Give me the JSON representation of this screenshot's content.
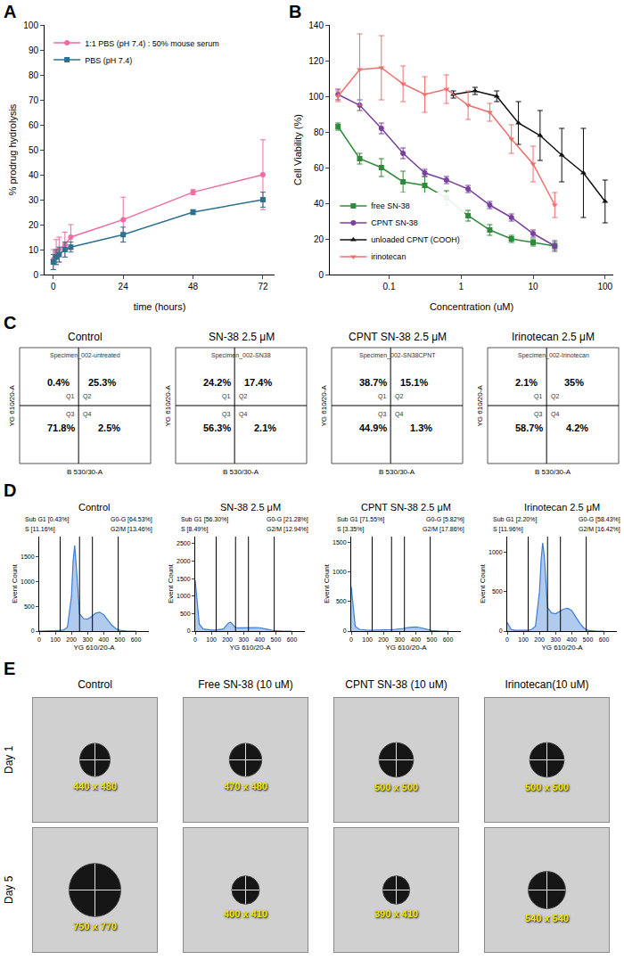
{
  "chart_data": [
    {
      "panel": "A",
      "type": "line",
      "xlabel": "time (hours)",
      "ylabel": "% prodrug hydrolysis",
      "x": [
        0,
        1,
        2,
        4,
        6,
        24,
        48,
        72
      ],
      "series": [
        {
          "name": "1:1 PBS (pH 7.4) : 50% mouse serum",
          "color": "#f06ba0",
          "marker": "circle",
          "values": [
            6,
            9,
            10,
            12,
            15,
            22,
            33,
            40
          ],
          "errors": [
            4,
            5,
            5,
            5,
            5,
            9,
            1,
            14
          ]
        },
        {
          "name": "PBS (pH 7.4)",
          "color": "#2f6f8f",
          "marker": "square",
          "values": [
            5,
            7,
            8,
            10,
            11,
            16,
            25,
            30
          ],
          "errors": [
            3,
            3,
            3,
            3,
            2,
            3,
            1,
            3
          ]
        }
      ],
      "xlim": [
        -3,
        76
      ],
      "xticks": [
        0,
        24,
        48,
        72
      ],
      "ylim": [
        0,
        100
      ],
      "yticks": [
        0,
        10,
        20,
        30,
        40,
        50,
        60,
        70,
        80,
        90,
        100
      ],
      "grid": false,
      "legend": "top-left"
    },
    {
      "panel": "B",
      "type": "line",
      "log": "x",
      "xlabel": "Concentration (uM)",
      "ylabel": "Cell Viability (%)",
      "series": [
        {
          "name": "free SN-38",
          "color": "#2e8b3a",
          "marker": "square",
          "x": [
            0.0195,
            0.039,
            0.078,
            0.156,
            0.3125,
            0.625,
            1.25,
            2.5,
            5,
            10,
            20
          ],
          "values": [
            83,
            65,
            60,
            52,
            50,
            43,
            33,
            25,
            20,
            18,
            16
          ],
          "errors": [
            2,
            3,
            5,
            6,
            5,
            4,
            3,
            3,
            2,
            2,
            2
          ]
        },
        {
          "name": "CPNT SN-38",
          "color": "#7b3fa0",
          "marker": "circle",
          "x": [
            0.0195,
            0.039,
            0.078,
            0.156,
            0.3125,
            0.625,
            1.25,
            2.5,
            5,
            10,
            20
          ],
          "values": [
            101,
            95,
            82,
            68,
            57,
            53,
            48,
            39,
            32,
            23,
            16
          ],
          "errors": [
            3,
            3,
            3,
            3,
            2,
            2,
            2,
            2,
            2,
            2,
            3
          ]
        },
        {
          "name": "unloaded CPNT (COOH)",
          "color": "#111111",
          "marker": "triangle-up",
          "x": [
            0.78125,
            1.5625,
            3.125,
            6.25,
            12.5,
            25,
            50,
            100
          ],
          "values": [
            101,
            103,
            100,
            85,
            78,
            67,
            57,
            41
          ],
          "errors": [
            2,
            2,
            3,
            12,
            14,
            15,
            25,
            12
          ]
        },
        {
          "name": "irinotecan",
          "color": "#f07070",
          "marker": "triangle-down",
          "x": [
            0.0195,
            0.039,
            0.078,
            0.156,
            0.3125,
            0.625,
            1.25,
            2.5,
            5,
            10,
            20
          ],
          "values": [
            100,
            115,
            116,
            107,
            101,
            104,
            95,
            91,
            76,
            62,
            39
          ],
          "errors": [
            3,
            20,
            18,
            10,
            10,
            8,
            8,
            5,
            8,
            10,
            7
          ]
        }
      ],
      "xlim": [
        0.015,
        130
      ],
      "xticks": [
        0.1,
        1,
        10,
        100
      ],
      "ylim": [
        0,
        140
      ],
      "yticks": [
        0,
        20,
        40,
        60,
        80,
        100,
        120,
        140
      ],
      "grid": false,
      "legend": "bottom-left"
    },
    {
      "panel": "C",
      "type": "quadrant",
      "xlabel": "B 530/30-A",
      "ylabel": "YG 610/20-A",
      "quadrants": [
        "Q1",
        "Q2",
        "Q3",
        "Q4"
      ],
      "tick_labels": false,
      "data_labels": true,
      "plots": [
        {
          "title": "Control",
          "specimen": "Specimen_002-untreated",
          "values": [
            0.4,
            25.3,
            71.8,
            2.5
          ],
          "value_labels": [
            "0.4%",
            "25.3%",
            "71.8%",
            "2.5%"
          ]
        },
        {
          "title": "SN-38 2.5 μM",
          "specimen": "Specimen_002-SN38",
          "values": [
            24.2,
            17.4,
            56.3,
            2.1
          ],
          "value_labels": [
            "24.2%",
            "17.4%",
            "56.3%",
            "2.1%"
          ]
        },
        {
          "title": "CPNT SN-38 2.5 μM",
          "specimen": "Specimen_002-SN38CPNT",
          "values": [
            38.7,
            15.1,
            44.9,
            1.3
          ],
          "value_labels": [
            "38.7%",
            "15.1%",
            "44.9%",
            "1.3%"
          ]
        },
        {
          "title": "Irinotecan 2.5 μM",
          "specimen": "Specimen_002-Irinotecan",
          "values": [
            2.1,
            35,
            58.7,
            4.2
          ],
          "value_labels": [
            "2.1%",
            "35%",
            "58.7%",
            "4.2%"
          ]
        }
      ]
    },
    {
      "panel": "D",
      "type": "area",
      "xlabel": "YG 610/20-A",
      "ylabel": "Event Count",
      "color": "#3b7dd8",
      "x": [
        0,
        25,
        50,
        75,
        100,
        125,
        150,
        175,
        200,
        210,
        220,
        230,
        250,
        275,
        300,
        325,
        350,
        375,
        400,
        425,
        450,
        475,
        500,
        550,
        600
      ],
      "xlim": [
        0,
        680
      ],
      "xticks": [
        0,
        100,
        200,
        300,
        400,
        500,
        600
      ],
      "gates": [
        130,
        250,
        330,
        490
      ],
      "plots": [
        {
          "title": "Control",
          "values": [
            0,
            5,
            5,
            5,
            5,
            10,
            20,
            80,
            700,
            1400,
            1720,
            1300,
            350,
            250,
            240,
            290,
            360,
            380,
            330,
            220,
            120,
            50,
            15,
            0,
            0
          ],
          "ylim": [
            0,
            1900
          ],
          "yticks": [
            0,
            500,
            1000,
            1500
          ],
          "gate_labels": [
            "Sub G1 [0.43%]",
            "G0-G [64.53%]",
            "S [11.16%]",
            "G2/M [13.46%]"
          ]
        },
        {
          "title": "SN-38 2.5 μM",
          "values": [
            1450,
            200,
            60,
            40,
            30,
            30,
            40,
            60,
            200,
            240,
            250,
            200,
            100,
            90,
            95,
            100,
            100,
            100,
            95,
            80,
            50,
            25,
            10,
            0,
            0
          ],
          "ylim": [
            0,
            2700
          ],
          "yticks": [
            0,
            500,
            1000,
            1500,
            2000,
            2500
          ],
          "gate_labels": [
            "Sub G1 [56.30%]",
            "G0-G [21.28%]",
            "S [8.49%]",
            "G2/M [12.94%]"
          ]
        },
        {
          "title": "CPNT SN-38 2.5 μM",
          "values": [
            750,
            80,
            30,
            20,
            15,
            15,
            15,
            15,
            20,
            20,
            20,
            20,
            25,
            30,
            35,
            45,
            60,
            70,
            70,
            60,
            40,
            20,
            10,
            0,
            0
          ],
          "ylim": [
            0,
            1600
          ],
          "yticks": [
            0,
            500,
            1000,
            1500
          ],
          "gate_labels": [
            "Sub G1 [71.55%]",
            "G0-G [5.82%]",
            "S [3.35%]",
            "G2/M [17.86%]"
          ]
        },
        {
          "title": "Irinotecan 2.5 μM",
          "values": [
            110,
            20,
            10,
            10,
            10,
            10,
            20,
            60,
            500,
            900,
            1120,
            950,
            300,
            230,
            220,
            250,
            280,
            290,
            260,
            180,
            100,
            40,
            10,
            0,
            0
          ],
          "ylim": [
            0,
            1200
          ],
          "yticks": [
            0,
            500,
            1000
          ],
          "gate_labels": [
            "Sub G1 [2.20%]",
            "G0-G [58.43%]",
            "S [11.96%]",
            "G2/M [16.42%]"
          ]
        }
      ]
    },
    {
      "panel": "E",
      "type": "ellipse",
      "color": "#161616",
      "tick_labels": false,
      "columns": [
        "Control",
        "Free SN-38 (10 uM)",
        "CPNT SN-38 (10 uM)",
        "Irinotecan(10 uM)"
      ],
      "rows": [
        "Day 1",
        "Day 5"
      ],
      "sizes": [
        [
          [
            440,
            480
          ],
          [
            470,
            480
          ],
          [
            500,
            500
          ],
          [
            500,
            500
          ]
        ],
        [
          [
            750,
            770
          ],
          [
            400,
            410
          ],
          [
            390,
            410
          ],
          [
            540,
            540
          ]
        ]
      ],
      "value_labels": [
        [
          "440 x 480",
          "470 x 480",
          "500 x 500",
          "500 x 500"
        ],
        [
          "750 x 770",
          "400 x 410",
          "390 x 410",
          "540 x 540"
        ]
      ],
      "xlim": [
        -900,
        900
      ],
      "ylim": [
        -900,
        900
      ]
    }
  ]
}
